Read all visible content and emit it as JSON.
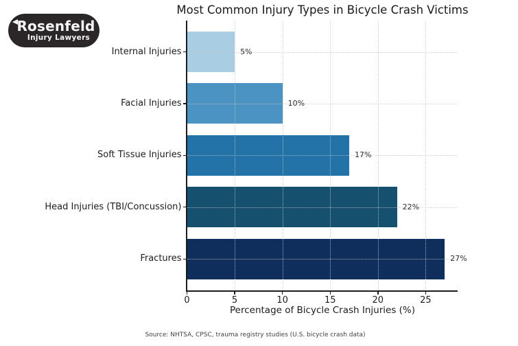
{
  "logo": {
    "brand": "Rosenfeld",
    "tagline": "Injury Lawyers",
    "bg_color": "#2b2728",
    "text_color": "#f7f7f7"
  },
  "chart_data": {
    "type": "bar",
    "orientation": "horizontal",
    "title": "Most Common Injury Types in Bicycle Crash Victims",
    "categories": [
      "Internal Injuries",
      "Facial Injuries",
      "Soft Tissue Injuries",
      "Head Injuries (TBI/Concussion)",
      "Fractures"
    ],
    "values": [
      5,
      10,
      17,
      22,
      27
    ],
    "value_labels": [
      "5%",
      "10%",
      "17%",
      "22%",
      "27%"
    ],
    "bar_colors": [
      "#a9cde3",
      "#4a93c3",
      "#2373a9",
      "#15506e",
      "#0f2e5c"
    ],
    "xlabel": "Percentage of Bicycle Crash Injuries (%)",
    "x_ticks": [
      0,
      5,
      10,
      15,
      20,
      25
    ],
    "xlim": [
      0,
      28.35
    ],
    "grid": "dotted",
    "legend": "none"
  },
  "source_note": "Source: NHTSA, CPSC, trauma registry studies (U.S. bicycle crash data)"
}
